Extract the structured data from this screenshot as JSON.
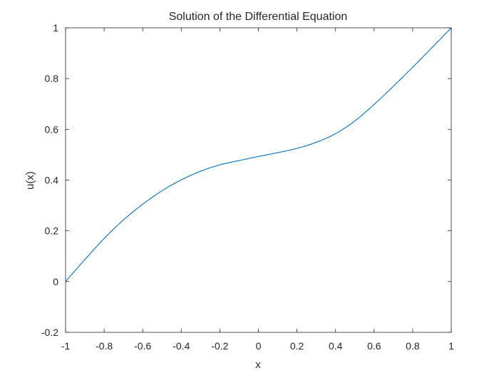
{
  "chart_data": {
    "type": "line",
    "title": "Solution of the Differential Equation",
    "xlabel": "x",
    "ylabel": "u(x)",
    "xlim": [
      -1,
      1
    ],
    "ylim": [
      -0.2,
      1
    ],
    "xticks": [
      "-1",
      "-0.8",
      "-0.6",
      "-0.4",
      "-0.2",
      "0",
      "0.2",
      "0.4",
      "0.6",
      "0.8",
      "1"
    ],
    "yticks": [
      "-0.2",
      "0",
      "0.2",
      "0.4",
      "0.6",
      "0.8",
      "1"
    ],
    "grid": false,
    "box": true,
    "series": [
      {
        "color": "#0072BD",
        "x": [
          -1.0,
          -0.9,
          -0.8,
          -0.7,
          -0.6,
          -0.5,
          -0.4,
          -0.3,
          -0.2,
          -0.1,
          0.0,
          0.1,
          0.2,
          0.3,
          0.4,
          0.5,
          0.6,
          0.7,
          0.8,
          0.9,
          1.0
        ],
        "y": [
          0.0,
          0.087,
          0.17,
          0.243,
          0.305,
          0.358,
          0.401,
          0.435,
          0.46,
          0.477,
          0.493,
          0.508,
          0.525,
          0.549,
          0.583,
          0.633,
          0.698,
          0.77,
          0.845,
          0.922,
          1.0
        ]
      }
    ]
  }
}
